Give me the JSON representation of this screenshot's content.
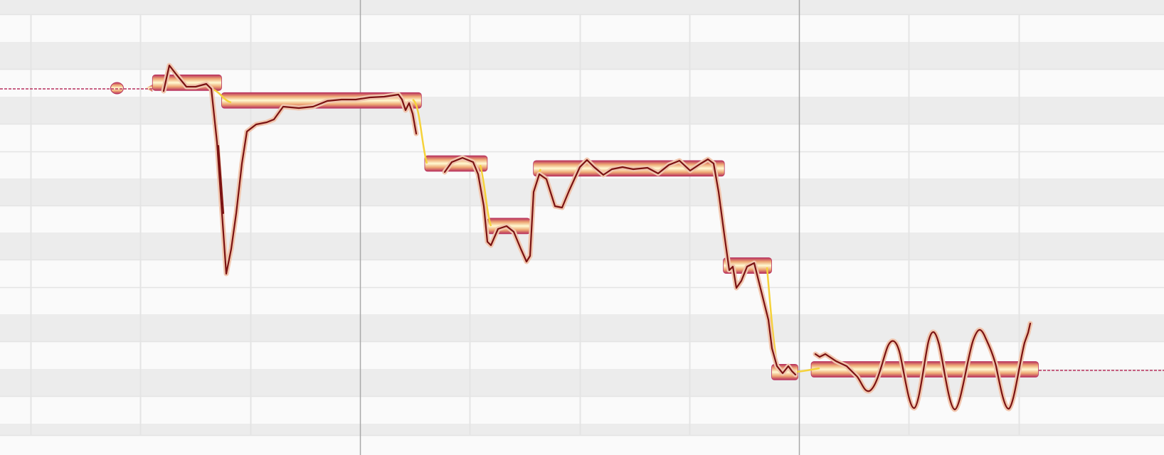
{
  "editor": {
    "colors": {
      "row_light": "#fafafa",
      "row_dark": "#ececec",
      "grid_line": "#e4e4e4",
      "bar_line": "#a8a8a8",
      "note_edge": "#b8305c",
      "note_mid": "#eea874",
      "note_core": "#fffad2",
      "pitch_curve": "#7a1212",
      "pitch_halo": "#f1c6ae",
      "pitch_center": "#f5d23a"
    },
    "grid": {
      "beats": 10,
      "bar_every": 4
    },
    "notes": [
      {
        "start": 0.69,
        "end": 1.11,
        "pitch_row": 2.2,
        "type": "sibilant"
      },
      {
        "start": 1.11,
        "end": 1.74,
        "pitch_row": 2.0
      },
      {
        "start": 1.74,
        "end": 3.56,
        "pitch_row": 2.65
      },
      {
        "start": 3.59,
        "end": 4.16,
        "pitch_row": 4.96
      },
      {
        "start": 4.16,
        "end": 4.55,
        "pitch_row": 7.25
      },
      {
        "start": 4.58,
        "end": 6.32,
        "pitch_row": 5.14
      },
      {
        "start": 6.31,
        "end": 6.75,
        "pitch_row": 8.7
      },
      {
        "start": 6.75,
        "end": 6.99,
        "pitch_row": 12.6
      },
      {
        "start": 7.11,
        "end": 9.18,
        "pitch_row": 12.5
      }
    ]
  }
}
